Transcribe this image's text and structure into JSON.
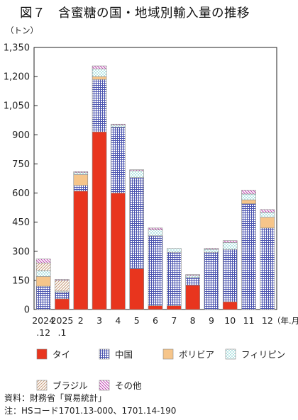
{
  "title": "図７　含蜜糖の国・地域別輸入量の推移",
  "notes": {
    "source": "資料：財務省「貿易統計」",
    "hs": "注：HSコード1701.13-000、1701.14-190"
  },
  "colors": {
    "タイ": "#e8351e",
    "中国": "#4b54b0",
    "ボリビア": "#f6c58a",
    "フィリピン": "#4fc0c0",
    "ブラジル": "#c79a76",
    "その他": "#c040b0"
  },
  "chart_data": {
    "type": "bar",
    "stacked": true,
    "ylabel": "（トン）",
    "xlabel": "（年.月）",
    "ylim": [
      0,
      1350
    ],
    "yticks": [
      0,
      150,
      300,
      450,
      600,
      750,
      900,
      1050,
      1200,
      1350
    ],
    "ytick_labels": [
      "0",
      "150",
      "300",
      "450",
      "600",
      "750",
      "900",
      "1,050",
      "1,200",
      "1,350"
    ],
    "categories": [
      {
        "top": "2024",
        "bottom": ".12"
      },
      {
        "top": "2025",
        "bottom": ".1"
      },
      {
        "top": "2",
        "bottom": ""
      },
      {
        "top": "3",
        "bottom": ""
      },
      {
        "top": "4",
        "bottom": ""
      },
      {
        "top": "5",
        "bottom": ""
      },
      {
        "top": "6",
        "bottom": ""
      },
      {
        "top": "7",
        "bottom": ""
      },
      {
        "top": "8",
        "bottom": ""
      },
      {
        "top": "9",
        "bottom": ""
      },
      {
        "top": "10",
        "bottom": ""
      },
      {
        "top": "11",
        "bottom": ""
      },
      {
        "top": "12",
        "bottom": ""
      }
    ],
    "series": [
      {
        "name": "タイ",
        "values": [
          0,
          55,
          610,
          915,
          600,
          210,
          20,
          20,
          125,
          0,
          40,
          0,
          0
        ]
      },
      {
        "name": "中国",
        "values": [
          120,
          35,
          30,
          270,
          340,
          470,
          360,
          275,
          40,
          295,
          270,
          545,
          420
        ]
      },
      {
        "name": "ボリビア",
        "values": [
          50,
          0,
          55,
          15,
          0,
          0,
          0,
          0,
          0,
          0,
          0,
          20,
          55
        ]
      },
      {
        "name": "フィリピン",
        "values": [
          30,
          5,
          10,
          40,
          10,
          35,
          30,
          20,
          10,
          15,
          35,
          30,
          25
        ]
      },
      {
        "name": "ブラジル",
        "values": [
          40,
          55,
          0,
          0,
          0,
          0,
          0,
          0,
          0,
          0,
          0,
          0,
          0
        ]
      },
      {
        "name": "その他",
        "values": [
          20,
          5,
          5,
          15,
          5,
          5,
          10,
          0,
          5,
          5,
          10,
          20,
          15
        ]
      }
    ],
    "grid": false,
    "legend_position": "bottom"
  }
}
